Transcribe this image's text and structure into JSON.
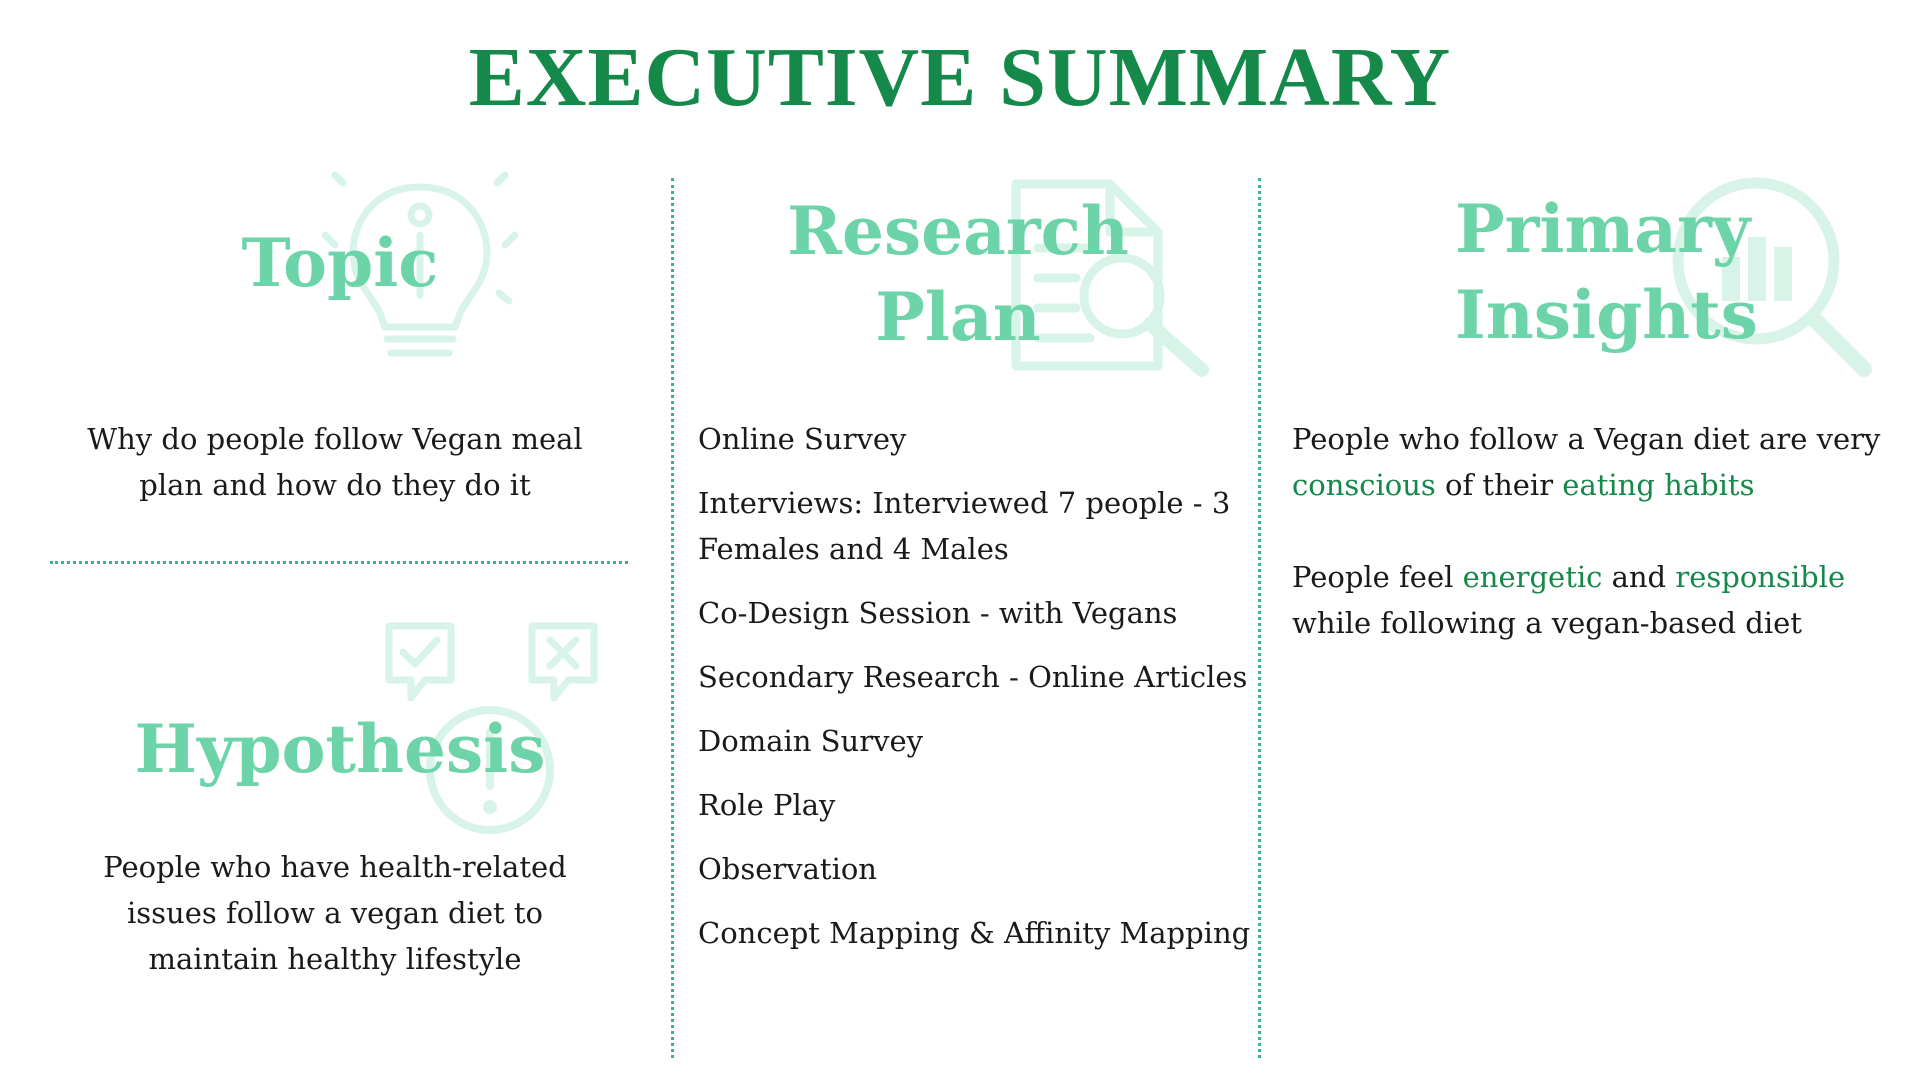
{
  "title": "EXECUTIVE SUMMARY",
  "colors": {
    "title": "#14894a",
    "heading": "#6dd3a8",
    "icon": "#d8f3e7",
    "divider": "#3cb38a",
    "highlight": "#14894a",
    "body": "#1a1a1a"
  },
  "topic": {
    "heading": "Topic",
    "icon": "lightbulb-icon",
    "lines": [
      "Why do people follow Vegan meal",
      "plan and how do they do it"
    ]
  },
  "hypothesis": {
    "heading": "Hypothesis",
    "icons": [
      "check-speech-bubble-icon",
      "cross-speech-bubble-icon",
      "exclamation-circle-icon"
    ],
    "lines": [
      "People who have health-related",
      "issues follow a vegan diet to",
      "maintain healthy lifestyle"
    ]
  },
  "research_plan": {
    "heading_line1": "Research",
    "heading_line2": "Plan",
    "icon": "document-search-icon",
    "items": [
      "Online Survey",
      "Interviews: Interviewed 7 people - 3 Females and 4 Males",
      "Co-Design Session - with Vegans",
      "Secondary Research - Online Articles",
      "Domain Survey",
      "Role Play",
      "Observation",
      "Concept Mapping & Affinity Mapping"
    ]
  },
  "primary_insights": {
    "heading_line1": "Primary",
    "heading_line2": "Insights",
    "icon": "magnifier-chart-icon",
    "insight1": {
      "a": "People who follow a Vegan diet are very ",
      "b": "conscious",
      "c": " of their ",
      "d": "eating habits"
    },
    "insight2": {
      "a": "People feel ",
      "b": "energetic",
      "c": " and ",
      "d": "responsible",
      "e": " while following a vegan-based diet"
    }
  }
}
